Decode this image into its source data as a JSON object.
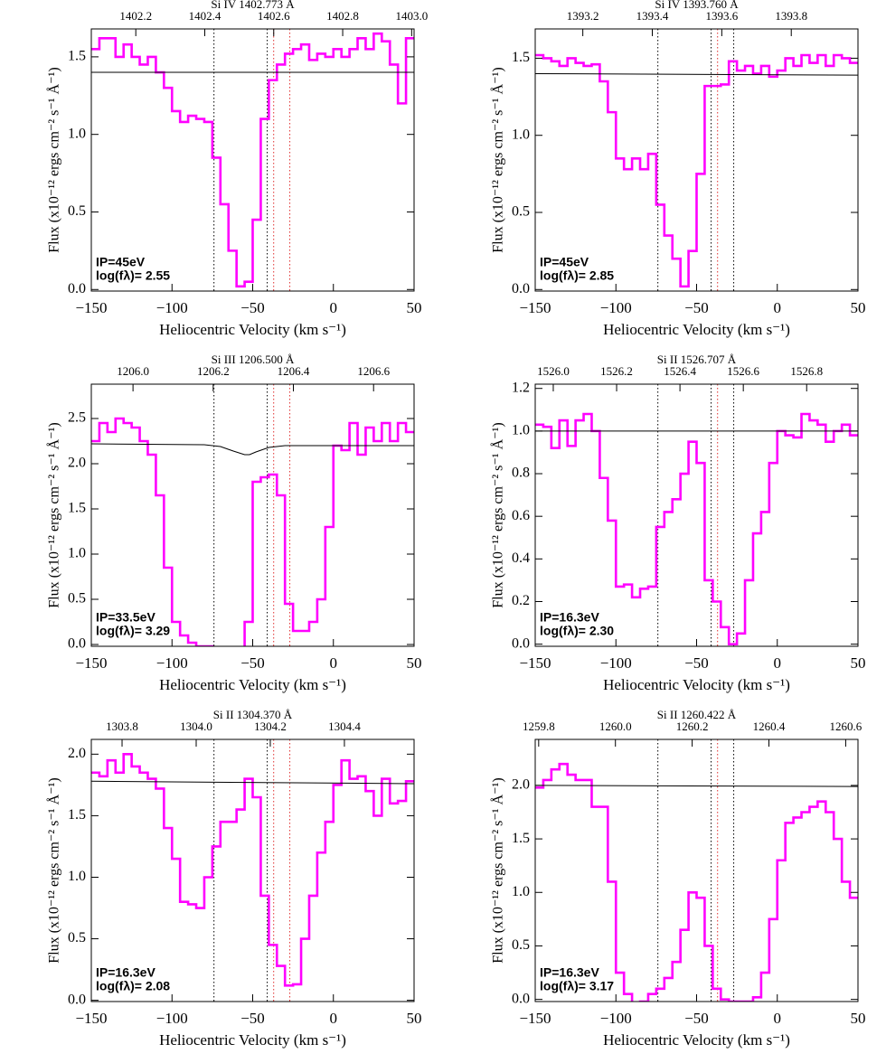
{
  "chart_data": [
    {
      "type": "line",
      "title": "Si IV 1402.773 Å",
      "x_label": "Heliocentric Velocity (km s⁻¹)",
      "y_label": "Flux (x10⁻¹² ergs cm⁻² s⁻¹ Å⁻¹)",
      "annotations": [
        "IP=45eV",
        "log(fλ)= 2.55"
      ],
      "xlim": [
        -150,
        50
      ],
      "xticks": [
        {
          "value": -150,
          "label": "−150"
        },
        {
          "value": -100,
          "label": "−100"
        },
        {
          "value": -50,
          "label": "−50"
        },
        0,
        50
      ],
      "x2lim": [
        1402.071,
        1403.007
      ],
      "x2ticks": [
        1402.2,
        1402.4,
        1402.6,
        1402.8,
        {
          "value": 1403.0,
          "label": "1403.0"
        }
      ],
      "ylim": [
        -0.01,
        1.68
      ],
      "yticks": [
        {
          "value": 0,
          "label": "0.0"
        },
        0.5,
        {
          "value": 1,
          "label": "1.0"
        },
        1.5
      ],
      "vlines": [
        {
          "x": -74,
          "color": "#000000"
        },
        {
          "x": -41,
          "color": "#000000"
        },
        {
          "x": -37,
          "color": "#e03030"
        },
        {
          "x": -27,
          "color": "#e03030"
        }
      ],
      "x": [
        -147.5,
        -142.5,
        -137.5,
        -132.5,
        -127.5,
        -122.5,
        -117.5,
        -112.5,
        -107.5,
        -102.5,
        -97.5,
        -92.5,
        -87.5,
        -82.5,
        -77.5,
        -72.5,
        -67.5,
        -62.5,
        -57.5,
        -52.5,
        -47.5,
        -42.5,
        -37.5,
        -32.5,
        -27.5,
        -22.5,
        -17.5,
        -12.5,
        -7.5,
        -2.5,
        2.5,
        7.5,
        12.5,
        17.5,
        22.5,
        27.5,
        32.5,
        37.5,
        42.5,
        47.5
      ],
      "series": [
        {
          "style": "steps",
          "color": "#ff00ff",
          "values": [
            1.55,
            1.62,
            1.62,
            1.5,
            1.58,
            1.5,
            1.45,
            1.5,
            1.4,
            1.3,
            1.15,
            1.08,
            1.12,
            1.1,
            1.08,
            0.85,
            0.55,
            0.25,
            0.02,
            0.05,
            0.45,
            1.1,
            1.35,
            1.45,
            1.52,
            1.55,
            1.58,
            1.48,
            1.52,
            1.5,
            1.55,
            1.5,
            1.55,
            1.62,
            1.55,
            1.65,
            1.6,
            1.45,
            1.2,
            1.62
          ]
        },
        {
          "style": "line",
          "color": "#000000",
          "x": [
            -150,
            50
          ],
          "values": [
            1.4,
            1.4
          ]
        }
      ]
    },
    {
      "type": "line",
      "title": "Si IV 1393.760 Å",
      "x_label": "Heliocentric Velocity (km s⁻¹)",
      "y_label": "Flux (x10⁻¹² ergs cm⁻² s⁻¹ Å⁻¹)",
      "annotations": [
        "IP=45eV",
        "log(fλ)= 2.85"
      ],
      "xlim": [
        -150,
        50
      ],
      "xticks": [
        {
          "value": -150,
          "label": "−150"
        },
        {
          "value": -100,
          "label": "−100"
        },
        {
          "value": -50,
          "label": "−50"
        },
        0,
        50
      ],
      "x2lim": [
        1393.063,
        1393.992
      ],
      "x2ticks": [
        1393.2,
        1393.4,
        1393.6,
        1393.8
      ],
      "ylim": [
        -0.01,
        1.69
      ],
      "yticks": [
        {
          "value": 0,
          "label": "0.0"
        },
        0.5,
        {
          "value": 1,
          "label": "1.0"
        },
        1.5
      ],
      "vlines": [
        {
          "x": -74,
          "color": "#000000"
        },
        {
          "x": -41,
          "color": "#000000"
        },
        {
          "x": -37,
          "color": "#e03030"
        },
        {
          "x": -27,
          "color": "#000000"
        }
      ],
      "x": [
        -147.5,
        -142.5,
        -137.5,
        -132.5,
        -127.5,
        -122.5,
        -117.5,
        -112.5,
        -107.5,
        -102.5,
        -97.5,
        -92.5,
        -87.5,
        -82.5,
        -77.5,
        -72.5,
        -67.5,
        -62.5,
        -57.5,
        -52.5,
        -47.5,
        -42.5,
        -37.5,
        -32.5,
        -27.5,
        -22.5,
        -17.5,
        -12.5,
        -7.5,
        -2.5,
        2.5,
        7.5,
        12.5,
        17.5,
        22.5,
        27.5,
        32.5,
        37.5,
        42.5,
        47.5
      ],
      "series": [
        {
          "style": "steps",
          "color": "#ff00ff",
          "values": [
            1.52,
            1.5,
            1.48,
            1.45,
            1.5,
            1.47,
            1.45,
            1.46,
            1.35,
            1.15,
            0.85,
            0.78,
            0.85,
            0.78,
            0.88,
            0.55,
            0.35,
            0.2,
            0.02,
            0.25,
            0.75,
            1.32,
            1.32,
            1.33,
            1.48,
            1.42,
            1.45,
            1.4,
            1.45,
            1.38,
            1.42,
            1.5,
            1.45,
            1.52,
            1.47,
            1.52,
            1.45,
            1.52,
            1.5,
            1.47
          ]
        },
        {
          "style": "line",
          "color": "#000000",
          "x": [
            -150,
            50
          ],
          "values": [
            1.4,
            1.39
          ]
        }
      ]
    },
    {
      "type": "line",
      "title": "Si III 1206.500 Å",
      "x_label": "Heliocentric Velocity (km s⁻¹)",
      "y_label": "Flux (x10⁻¹² ergs cm⁻² s⁻¹ Å⁻¹)",
      "annotations": [
        "IP=33.5eV",
        "log(fλ)= 3.29"
      ],
      "xlim": [
        -150,
        50
      ],
      "xticks": [
        {
          "value": -150,
          "label": "−150"
        },
        {
          "value": -100,
          "label": "−100"
        },
        {
          "value": -50,
          "label": "−50"
        },
        0,
        50
      ],
      "x2lim": [
        1205.896,
        1206.701
      ],
      "x2ticks": [
        {
          "value": 1206.0,
          "label": "1206.0"
        },
        1206.2,
        1206.4,
        1206.6
      ],
      "ylim": [
        -0.02,
        2.88
      ],
      "yticks": [
        {
          "value": 0,
          "label": "0.0"
        },
        0.5,
        {
          "value": 1,
          "label": "1.0"
        },
        1.5,
        {
          "value": 2,
          "label": "2.0"
        },
        2.5
      ],
      "vlines": [
        {
          "x": -74,
          "color": "#000000"
        },
        {
          "x": -41,
          "color": "#000000"
        },
        {
          "x": -37,
          "color": "#e03030"
        },
        {
          "x": -27,
          "color": "#e03030"
        }
      ],
      "x": [
        -147.5,
        -142.5,
        -137.5,
        -132.5,
        -127.5,
        -122.5,
        -117.5,
        -112.5,
        -107.5,
        -102.5,
        -97.5,
        -92.5,
        -87.5,
        -82.5,
        -77.5,
        -72.5,
        -67.5,
        -62.5,
        -57.5,
        -52.5,
        -47.5,
        -42.5,
        -37.5,
        -32.5,
        -27.5,
        -22.5,
        -17.5,
        -12.5,
        -7.5,
        -2.5,
        2.5,
        7.5,
        12.5,
        17.5,
        22.5,
        27.5,
        32.5,
        37.5,
        42.5,
        47.5
      ],
      "series": [
        {
          "style": "steps",
          "color": "#ff00ff",
          "values": [
            2.25,
            2.45,
            2.35,
            2.5,
            2.45,
            2.4,
            2.25,
            2.1,
            1.65,
            0.85,
            0.25,
            0.1,
            0.02,
            -0.02,
            -0.02,
            -0.03,
            -0.03,
            -0.03,
            -0.03,
            0.25,
            1.8,
            1.85,
            1.88,
            1.65,
            0.45,
            0.15,
            0.15,
            0.25,
            0.5,
            1.3,
            2.2,
            2.15,
            2.45,
            2.1,
            2.4,
            2.25,
            2.45,
            2.25,
            2.45,
            2.35
          ]
        },
        {
          "style": "line",
          "color": "#000000",
          "x": [
            -150,
            -80,
            -70,
            -62,
            -55,
            -52,
            -48,
            -40,
            -30,
            -10,
            50
          ],
          "values": [
            2.22,
            2.21,
            2.19,
            2.14,
            2.1,
            2.1,
            2.13,
            2.18,
            2.2,
            2.2,
            2.2
          ]
        }
      ]
    },
    {
      "type": "line",
      "title": "Si II 1526.707 Å",
      "x_label": "Heliocentric Velocity (km s⁻¹)",
      "y_label": "Flux (x10⁻¹² ergs cm⁻² s⁻¹ Å⁻¹)",
      "annotations": [
        "IP=16.3eV",
        "log(fλ)= 2.30"
      ],
      "xlim": [
        -150,
        50
      ],
      "xticks": [
        {
          "value": -150,
          "label": "−150"
        },
        {
          "value": -100,
          "label": "−100"
        },
        {
          "value": -50,
          "label": "−50"
        },
        0,
        50
      ],
      "x2lim": [
        1525.943,
        1526.962
      ],
      "x2ticks": [
        {
          "value": 1526.0,
          "label": "1526.0"
        },
        1526.2,
        1526.4,
        1526.6,
        1526.8
      ],
      "ylim": [
        -0.01,
        1.22
      ],
      "yticks": [
        {
          "value": 0,
          "label": "0.0"
        },
        0.2,
        0.4,
        0.6,
        0.8,
        {
          "value": 1,
          "label": "1.0"
        },
        1.2
      ],
      "vlines": [
        {
          "x": -74,
          "color": "#000000"
        },
        {
          "x": -41,
          "color": "#000000"
        },
        {
          "x": -37,
          "color": "#e03030"
        },
        {
          "x": -27,
          "color": "#000000"
        }
      ],
      "x": [
        -147.5,
        -142.5,
        -137.5,
        -132.5,
        -127.5,
        -122.5,
        -117.5,
        -112.5,
        -107.5,
        -102.5,
        -97.5,
        -92.5,
        -87.5,
        -82.5,
        -77.5,
        -72.5,
        -67.5,
        -62.5,
        -57.5,
        -52.5,
        -47.5,
        -42.5,
        -37.5,
        -32.5,
        -27.5,
        -22.5,
        -17.5,
        -12.5,
        -7.5,
        -2.5,
        2.5,
        7.5,
        12.5,
        17.5,
        22.5,
        27.5,
        32.5,
        37.5,
        42.5,
        47.5
      ],
      "series": [
        {
          "style": "steps",
          "color": "#ff00ff",
          "values": [
            1.03,
            1.02,
            0.92,
            1.05,
            0.93,
            1.05,
            1.08,
            1.0,
            0.78,
            0.58,
            0.27,
            0.28,
            0.22,
            0.26,
            0.27,
            0.55,
            0.62,
            0.68,
            0.8,
            0.95,
            0.85,
            0.3,
            0.2,
            0.08,
            0.0,
            0.05,
            0.3,
            0.52,
            0.62,
            0.85,
            1.0,
            0.98,
            0.97,
            1.08,
            1.05,
            1.03,
            0.95,
            1.0,
            1.03,
            0.98
          ]
        },
        {
          "style": "line",
          "color": "#000000",
          "x": [
            -150,
            50
          ],
          "values": [
            1.0,
            1.0
          ]
        }
      ]
    },
    {
      "type": "line",
      "title": "Si II 1304.370 Å",
      "x_label": "Heliocentric Velocity (km s⁻¹)",
      "y_label": "Flux (x10⁻¹² ergs cm⁻² s⁻¹ Å⁻¹)",
      "annotations": [
        "IP=16.3eV",
        "log(fλ)= 2.08"
      ],
      "xlim": [
        -150,
        50
      ],
      "xticks": [
        {
          "value": -150,
          "label": "−150"
        },
        {
          "value": -100,
          "label": "−100"
        },
        {
          "value": -50,
          "label": "−50"
        },
        0,
        50
      ],
      "x2lim": [
        1303.717,
        1304.588
      ],
      "x2ticks": [
        1303.8,
        {
          "value": 1304.0,
          "label": "1304.0"
        },
        1304.2,
        1304.4
      ],
      "ylim": [
        -0.01,
        2.12
      ],
      "yticks": [
        {
          "value": 0,
          "label": "0.0"
        },
        0.5,
        {
          "value": 1,
          "label": "1.0"
        },
        1.5,
        {
          "value": 2,
          "label": "2.0"
        }
      ],
      "vlines": [
        {
          "x": -74,
          "color": "#000000"
        },
        {
          "x": -41,
          "color": "#000000"
        },
        {
          "x": -37,
          "color": "#e03030"
        },
        {
          "x": -27,
          "color": "#e03030"
        }
      ],
      "x": [
        -147.5,
        -142.5,
        -137.5,
        -132.5,
        -127.5,
        -122.5,
        -117.5,
        -112.5,
        -107.5,
        -102.5,
        -97.5,
        -92.5,
        -87.5,
        -82.5,
        -77.5,
        -72.5,
        -67.5,
        -62.5,
        -57.5,
        -52.5,
        -47.5,
        -42.5,
        -37.5,
        -32.5,
        -27.5,
        -22.5,
        -17.5,
        -12.5,
        -7.5,
        -2.5,
        2.5,
        7.5,
        12.5,
        17.5,
        22.5,
        27.5,
        32.5,
        37.5,
        42.5,
        47.5
      ],
      "series": [
        {
          "style": "steps",
          "color": "#ff00ff",
          "values": [
            1.85,
            1.82,
            1.95,
            1.85,
            2.0,
            1.9,
            1.85,
            1.8,
            1.72,
            1.4,
            1.15,
            0.8,
            0.78,
            0.75,
            1.0,
            1.25,
            1.45,
            1.45,
            1.55,
            1.8,
            1.65,
            0.85,
            0.45,
            0.28,
            0.12,
            0.13,
            0.5,
            0.85,
            1.2,
            1.45,
            1.75,
            1.95,
            1.8,
            1.82,
            1.7,
            1.5,
            1.8,
            1.6,
            1.62,
            1.78
          ]
        },
        {
          "style": "line",
          "color": "#000000",
          "x": [
            -150,
            50
          ],
          "values": [
            1.78,
            1.76
          ]
        }
      ]
    },
    {
      "type": "line",
      "title": "Si II 1260.422 Å",
      "x_label": "Heliocentric Velocity (km s⁻¹)",
      "y_label": "Flux (x10⁻¹² ergs cm⁻² s⁻¹ Å⁻¹)",
      "annotations": [
        "IP=16.3eV",
        "log(fλ)= 3.17"
      ],
      "xlim": [
        -150,
        50
      ],
      "xticks": [
        {
          "value": -150,
          "label": "−150"
        },
        {
          "value": -100,
          "label": "−100"
        },
        {
          "value": -50,
          "label": "−50"
        },
        0,
        50
      ],
      "x2lim": [
        1259.791,
        1260.632
      ],
      "x2ticks": [
        1259.8,
        {
          "value": 1260.0,
          "label": "1260.0"
        },
        1260.2,
        1260.4,
        1260.6
      ],
      "ylim": [
        -0.02,
        2.43
      ],
      "yticks": [
        {
          "value": 0,
          "label": "0.0"
        },
        0.5,
        {
          "value": 1,
          "label": "1.0"
        },
        1.5,
        {
          "value": 2,
          "label": "2.0"
        }
      ],
      "vlines": [
        {
          "x": -74,
          "color": "#000000"
        },
        {
          "x": -41,
          "color": "#000000"
        },
        {
          "x": -37,
          "color": "#e03030"
        },
        {
          "x": -27,
          "color": "#000000"
        }
      ],
      "x": [
        -147.5,
        -142.5,
        -137.5,
        -132.5,
        -127.5,
        -122.5,
        -117.5,
        -112.5,
        -107.5,
        -102.5,
        -97.5,
        -92.5,
        -87.5,
        -82.5,
        -77.5,
        -72.5,
        -67.5,
        -62.5,
        -57.5,
        -52.5,
        -47.5,
        -42.5,
        -37.5,
        -32.5,
        -27.5,
        -22.5,
        -17.5,
        -12.5,
        -7.5,
        -2.5,
        2.5,
        7.5,
        12.5,
        17.5,
        22.5,
        27.5,
        32.5,
        37.5,
        42.5,
        47.5
      ],
      "series": [
        {
          "style": "steps",
          "color": "#ff00ff",
          "values": [
            1.98,
            2.05,
            2.15,
            2.2,
            2.1,
            2.05,
            2.05,
            1.8,
            1.8,
            1.1,
            0.25,
            0.05,
            -0.03,
            -0.02,
            0.05,
            0.1,
            0.2,
            0.35,
            0.65,
            1.0,
            0.95,
            0.5,
            0.1,
            0.0,
            -0.02,
            -0.02,
            -0.02,
            0.02,
            0.25,
            0.75,
            1.3,
            1.65,
            1.7,
            1.75,
            1.8,
            1.85,
            1.75,
            1.5,
            1.1,
            0.95
          ]
        },
        {
          "style": "line",
          "color": "#000000",
          "x": [
            -150,
            50
          ],
          "values": [
            2.0,
            1.99
          ]
        }
      ]
    }
  ]
}
